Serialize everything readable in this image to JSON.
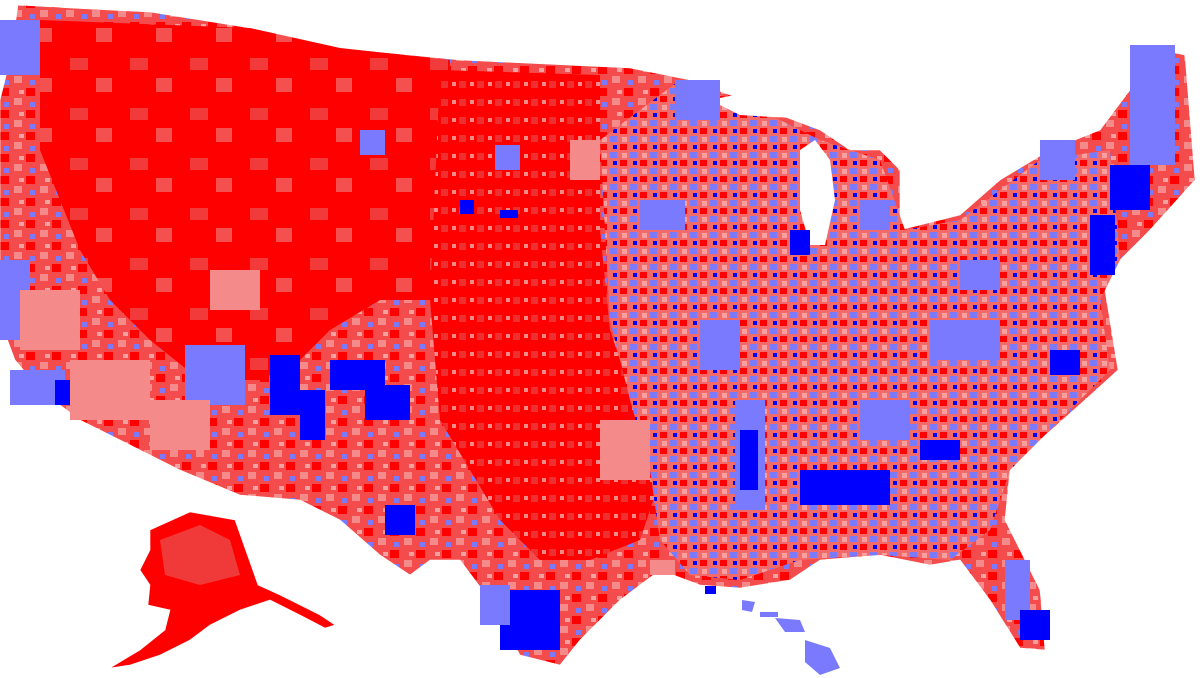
{
  "map": {
    "type": "choropleth",
    "subject": "united-states-counties",
    "colors": {
      "strong_red": "#ff0000",
      "medium_red": "#f24a4a",
      "light_red": "#f58a8a",
      "light_blue": "#7a7aff",
      "strong_blue": "#0000ff",
      "background": "#ffffff"
    },
    "regions": [
      {
        "name": "contiguous-us",
        "dominant_color": "strong_red"
      },
      {
        "name": "alaska",
        "dominant_color": "strong_red"
      },
      {
        "name": "hawaii",
        "dominant_color": "light_blue"
      }
    ]
  }
}
